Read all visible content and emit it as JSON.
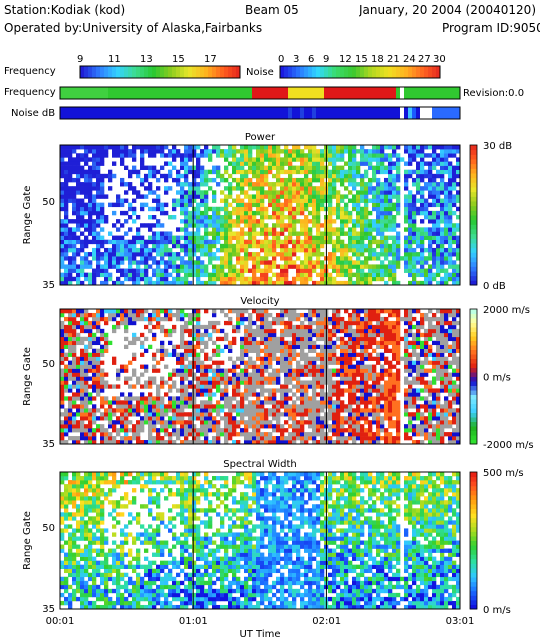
{
  "header": {
    "station": "Station:Kodiak (kod)",
    "operator": "Operated by:University of Alaska,Fairbanks",
    "beam": "Beam 05",
    "date": "January, 20 2004 (20040120)",
    "program": "Program ID:9050"
  },
  "legends": {
    "frequency_label": "Frequency",
    "frequency_ticks": [
      "9",
      "11",
      "13",
      "15",
      "17"
    ],
    "noise_label": "Noise",
    "noise_ticks": [
      "0",
      "3",
      "6",
      "9",
      "12",
      "15",
      "18",
      "21",
      "24",
      "27",
      "30"
    ]
  },
  "strips": {
    "frequency_label": "Frequency",
    "noise_label": "Noise dB",
    "revision": "Revision:0.0"
  },
  "chart_data": [
    {
      "type": "heatmap",
      "title": "Power",
      "ylabel": "Range Gate",
      "xlabel": "UT Time",
      "yticks": [
        "35",
        "50"
      ],
      "xticks": [
        "00:01",
        "01:01",
        "02:01",
        "03:01"
      ],
      "colorbar_labels": [
        "30 dB",
        "0 dB"
      ],
      "value_range": [
        0,
        30
      ],
      "unit": "dB",
      "palette": [
        "#1f1fd6",
        "#2f7fff",
        "#34d2ff",
        "#3ddc90",
        "#27c832",
        "#8ccc1e",
        "#e8e62a",
        "#ffb21e",
        "#ff5a1e",
        "#e01e1e"
      ]
    },
    {
      "type": "heatmap",
      "title": "Velocity",
      "ylabel": "Range Gate",
      "xlabel": "UT Time",
      "yticks": [
        "35",
        "50"
      ],
      "xticks": [
        "00:01",
        "01:01",
        "02:01",
        "03:01"
      ],
      "colorbar_labels": [
        "2000 m/s",
        "0 m/s",
        "-2000 m/s"
      ],
      "value_range": [
        -2000,
        2000
      ],
      "unit": "m/s",
      "palette": [
        "#30e030",
        "#20b020",
        "#3ccfff",
        "#7ee8ff",
        "#1010d0",
        "#e02010",
        "#ff7020",
        "#ffd020",
        "#ffffa0",
        "#a0ffff"
      ]
    },
    {
      "type": "heatmap",
      "title": "Spectral Width",
      "ylabel": "Range Gate",
      "xlabel": "UT Time",
      "yticks": [
        "35",
        "50"
      ],
      "xticks": [
        "00:01",
        "01:01",
        "02:01",
        "03:01"
      ],
      "colorbar_labels": [
        "500 m/s",
        "0 m/s"
      ],
      "value_range": [
        0,
        500
      ],
      "unit": "m/s",
      "palette": [
        "#1212e0",
        "#1a6aff",
        "#30c8ff",
        "#2ee0a0",
        "#30d030",
        "#a8dc20",
        "#ffe020",
        "#ffa010",
        "#ff5020",
        "#e01010"
      ]
    }
  ],
  "axis": {
    "xlabel": "UT Time"
  }
}
